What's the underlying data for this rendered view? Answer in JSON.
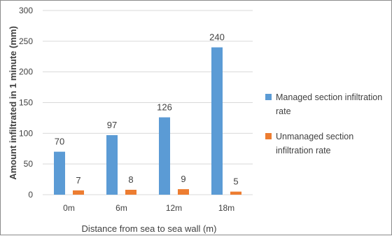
{
  "chart_data": {
    "type": "bar",
    "title": "",
    "xlabel": "Distance from sea to sea wall (m)",
    "ylabel": "Amount infiltrated in 1 minute (mm)",
    "categories": [
      "0m",
      "6m",
      "12m",
      "18m"
    ],
    "series": [
      {
        "name": "Managed section infiltration rate",
        "color": "#5b9bd5",
        "values": [
          70,
          97,
          126,
          240
        ]
      },
      {
        "name": "Unmanaged section infiltration rate",
        "color": "#ed7d31",
        "values": [
          7,
          8,
          9,
          5
        ]
      }
    ],
    "ylim": [
      0,
      300
    ],
    "yticks": [
      "0",
      "50",
      "100",
      "150",
      "200",
      "250",
      "300"
    ],
    "grid": true,
    "legend_position": "right",
    "data_labels": true
  }
}
